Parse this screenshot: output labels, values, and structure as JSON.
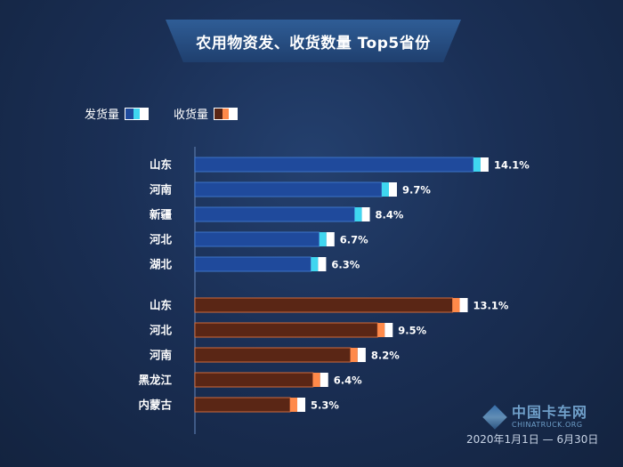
{
  "title": "农用物资发、收货数量 Top5省份",
  "legend": [
    {
      "label": "发货量",
      "colors": [
        "#1f4a9c",
        "#3fd6f0",
        "#ffffff"
      ]
    },
    {
      "label": "收货量",
      "colors": [
        "#5a2615",
        "#ff8a4a",
        "#ffffff"
      ]
    }
  ],
  "chart_data": [
    {
      "type": "bar",
      "orientation": "horizontal",
      "series": [
        {
          "name": "发货量",
          "values": [
            14.1,
            9.7,
            8.4,
            6.7,
            6.3
          ]
        }
      ],
      "categories": [
        "山东",
        "河南",
        "新疆",
        "河北",
        "湖北"
      ],
      "labels": [
        "14.1%",
        "9.7%",
        "8.4%",
        "6.7%",
        "6.3%"
      ],
      "colors": {
        "fill": "#1f4a9c",
        "border": "#3c74c8",
        "accent": "#3fd6f0",
        "end": "#ffffff"
      }
    },
    {
      "type": "bar",
      "orientation": "horizontal",
      "series": [
        {
          "name": "收货量",
          "values": [
            13.1,
            9.5,
            8.2,
            6.4,
            5.3
          ]
        }
      ],
      "categories": [
        "山东",
        "河北",
        "河南",
        "黑龙江",
        "内蒙古"
      ],
      "labels": [
        "13.1%",
        "9.5%",
        "8.2%",
        "6.4%",
        "5.3%"
      ],
      "colors": {
        "fill": "#5a2615",
        "border": "#d06a3a",
        "accent": "#ff8a4a",
        "end": "#ffffff"
      }
    }
  ],
  "watermark": {
    "cn": "中国卡车网",
    "en": "CHINATRUCK.ORG"
  },
  "date_note": "2020年1月1日 — 6月30日"
}
